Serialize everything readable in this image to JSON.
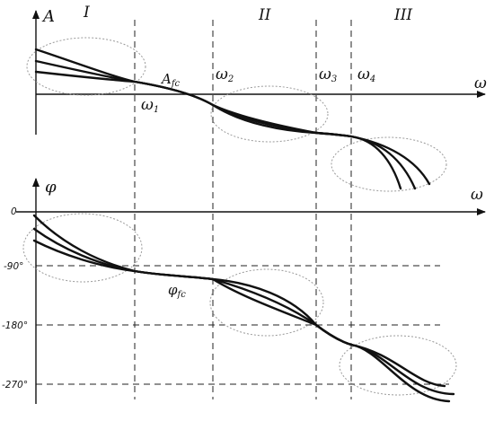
{
  "regions": [
    "I",
    "II",
    "III"
  ],
  "top_plot": {
    "y_axis_symbol": "A",
    "x_axis_symbol": "ω",
    "crossover_label": {
      "main": "A",
      "sub": "fc"
    },
    "frequency_labels": [
      {
        "main": "ω",
        "sub": "1"
      },
      {
        "main": "ω",
        "sub": "2"
      },
      {
        "main": "ω",
        "sub": "3"
      },
      {
        "main": "ω",
        "sub": "4"
      }
    ]
  },
  "bottom_plot": {
    "y_axis_symbol": "φ",
    "x_axis_symbol": "ω",
    "phase_label": {
      "main": "φ",
      "sub": "fc"
    },
    "y_ticks": [
      "0",
      "-90°",
      "-180°",
      "-270°"
    ]
  },
  "colors": {
    "line": "#111111",
    "ellipse": "#9a9a9a"
  }
}
